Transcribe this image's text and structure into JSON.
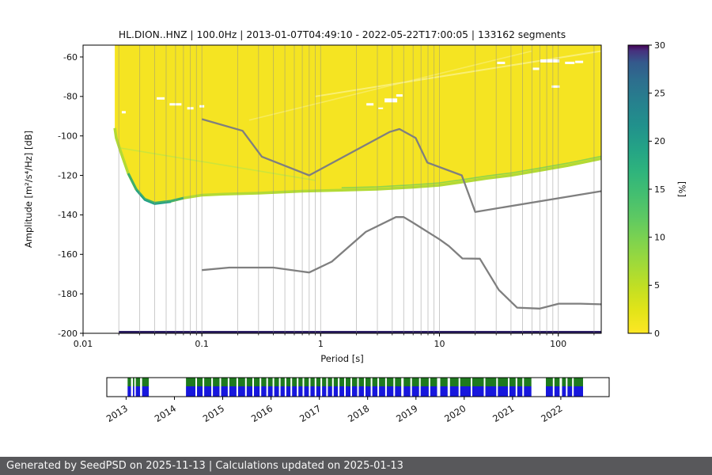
{
  "page": {
    "background": "#ffffff"
  },
  "footer": {
    "text": "Generated by SeedPSD on 2025-11-13 | Calculations updated on 2025-01-13"
  },
  "chart_data": [
    {
      "type": "heatmap",
      "title": "HL.DION..HNZ | 100.0Hz | 2013-01-07T04:49:10 - 2022-05-22T17:00:05 | 133162 segments",
      "xlabel": "Period [s]",
      "ylabel": "Amplitude [m²/s⁴/Hz] [dB]",
      "x_scale": "log",
      "xlim": [
        0.01,
        230
      ],
      "ylim": [
        -200,
        -54
      ],
      "x_ticks": [
        0.01,
        0.1,
        1,
        10,
        100
      ],
      "x_tick_labels": [
        "0.01",
        "0.1",
        "1",
        "10",
        "100"
      ],
      "y_ticks": [
        -60,
        -80,
        -100,
        -120,
        -140,
        -160,
        -180,
        -200
      ],
      "grid": "vertical-log-minor",
      "colorbar": {
        "label": "[%]",
        "min": 0,
        "max": 30,
        "ticks": [
          0,
          5,
          10,
          15,
          20,
          25,
          30
        ],
        "colormap": "viridis_r",
        "gradient": [
          [
            0.0,
            "#fde725"
          ],
          [
            0.08,
            "#e2e418"
          ],
          [
            0.16,
            "#c2df23"
          ],
          [
            0.24,
            "#a0da39"
          ],
          [
            0.32,
            "#7fd34e"
          ],
          [
            0.4,
            "#5ec962"
          ],
          [
            0.48,
            "#44bf70"
          ],
          [
            0.56,
            "#2fb47c"
          ],
          [
            0.64,
            "#24a386"
          ],
          [
            0.72,
            "#21918c"
          ],
          [
            0.8,
            "#26818e"
          ],
          [
            0.88,
            "#2d6e8e"
          ],
          [
            0.94,
            "#34598c"
          ],
          [
            0.98,
            "#46327e"
          ],
          [
            1.0,
            "#440154"
          ]
        ]
      },
      "ppsd": {
        "fill_color": "#f5e422",
        "lower_bound": [
          [
            0.0185,
            -96
          ],
          [
            0.019,
            -101
          ],
          [
            0.021,
            -109
          ],
          [
            0.024,
            -119
          ],
          [
            0.028,
            -127
          ],
          [
            0.033,
            -132
          ],
          [
            0.04,
            -134
          ],
          [
            0.055,
            -133
          ],
          [
            0.07,
            -131.5
          ],
          [
            0.1,
            -130
          ],
          [
            0.15,
            -129.5
          ],
          [
            0.3,
            -129
          ],
          [
            0.7,
            -128
          ],
          [
            1.5,
            -127.5
          ],
          [
            3,
            -127
          ],
          [
            6,
            -126
          ],
          [
            10,
            -125
          ],
          [
            15,
            -123.5
          ],
          [
            25,
            -121.5
          ],
          [
            40,
            -120
          ],
          [
            70,
            -117.5
          ],
          [
            120,
            -115
          ],
          [
            230,
            -111.5
          ]
        ],
        "edge": {
          "color": "#b3da35",
          "width": 3.5
        },
        "edge_extra": [
          {
            "color": "#3fae6e",
            "width": 3,
            "range": [
              0.023,
              0.095
            ],
            "dy": 0
          },
          {
            "color": "#1f9e89",
            "width": 1.6,
            "range": [
              0.028,
              0.06
            ],
            "dy": 1.5
          },
          {
            "color": "#8fd54a",
            "width": 1.6,
            "range": [
              1.5,
              230
            ],
            "dy": -3
          }
        ],
        "streaks": [
          {
            "from": [
              0.02,
              -106
            ],
            "to": [
              0.9,
              -122.5
            ],
            "color": "#c9e43d",
            "width": 1.6,
            "opacity": 0.9
          },
          {
            "from": [
              0.9,
              -80
            ],
            "to": [
              230,
              -57
            ],
            "color": "#faf283",
            "width": 2,
            "opacity": 0.85
          },
          {
            "from": [
              0.25,
              -92
            ],
            "to": [
              60,
              -57
            ],
            "color": "#f9f083",
            "width": 1.6,
            "opacity": 0.6
          }
        ],
        "white_patches": [
          [
            0.045,
            -81,
            10,
            3
          ],
          [
            0.06,
            -84,
            15,
            3
          ],
          [
            0.08,
            -86,
            8,
            3
          ],
          [
            0.1,
            -85,
            6,
            3
          ],
          [
            0.022,
            -88,
            5,
            3
          ],
          [
            2.6,
            -84,
            9,
            3
          ],
          [
            3.9,
            -82,
            16,
            5
          ],
          [
            4.6,
            -79.5,
            8,
            3
          ],
          [
            3.2,
            -86,
            6,
            2
          ],
          [
            33,
            -63,
            10,
            3
          ],
          [
            85,
            -62,
            24,
            4
          ],
          [
            125,
            -63,
            12,
            3
          ],
          [
            95,
            -75,
            10,
            3
          ],
          [
            65,
            -66,
            8,
            3
          ],
          [
            150,
            -62.5,
            10,
            3
          ]
        ],
        "bottom_line": {
          "y": -199.3,
          "x_start": 0.02,
          "color": "#2c1e63"
        }
      },
      "noise_models": {
        "color": "#7f7f7f",
        "high": [
          [
            0.1,
            -91.5
          ],
          [
            0.22,
            -97.4
          ],
          [
            0.32,
            -110.5
          ],
          [
            0.8,
            -120
          ],
          [
            3.8,
            -98
          ],
          [
            4.6,
            -96.5
          ],
          [
            6.3,
            -101
          ],
          [
            7.9,
            -113.5
          ],
          [
            15.4,
            -120
          ],
          [
            20,
            -138.5
          ],
          [
            230,
            -128
          ]
        ],
        "low": [
          [
            0.1,
            -168
          ],
          [
            0.17,
            -166.7
          ],
          [
            0.4,
            -166.7
          ],
          [
            0.8,
            -169.2
          ],
          [
            1.24,
            -163.7
          ],
          [
            2.4,
            -148.6
          ],
          [
            4.3,
            -141.1
          ],
          [
            5,
            -141.1
          ],
          [
            6,
            -144
          ],
          [
            10,
            -152.4
          ],
          [
            12,
            -155.8
          ],
          [
            15.6,
            -162.1
          ],
          [
            21.9,
            -162.2
          ],
          [
            31.6,
            -178
          ],
          [
            45,
            -187
          ],
          [
            70,
            -187.5
          ],
          [
            101,
            -185
          ],
          [
            154,
            -185
          ],
          [
            230,
            -185.3
          ]
        ]
      }
    },
    {
      "type": "availability-timeline",
      "range": [
        2012.6,
        2023.0
      ],
      "years": [
        "2013",
        "2014",
        "2015",
        "2016",
        "2017",
        "2018",
        "2019",
        "2020",
        "2021",
        "2022"
      ],
      "year_values": [
        2013,
        2014,
        2015,
        2016,
        2017,
        2018,
        2019,
        2020,
        2021,
        2022
      ],
      "colors": {
        "top": "#1e7a1e",
        "bottom": "#1717dd"
      },
      "runs": [
        [
          2013.03,
          2013.1
        ],
        [
          2013.14,
          2013.17
        ],
        [
          2013.2,
          2013.29
        ],
        [
          2013.33,
          2013.47
        ],
        [
          2014.24,
          2021.39
        ],
        [
          2021.69,
          2022.46
        ]
      ],
      "gaps": [
        [
          2014.45,
          2
        ],
        [
          2014.6,
          2
        ],
        [
          2014.78,
          2
        ],
        [
          2014.95,
          2
        ],
        [
          2015.12,
          2
        ],
        [
          2015.3,
          2
        ],
        [
          2015.48,
          2
        ],
        [
          2015.63,
          2
        ],
        [
          2015.78,
          2
        ],
        [
          2015.92,
          2
        ],
        [
          2016.05,
          2
        ],
        [
          2016.18,
          2
        ],
        [
          2016.3,
          2
        ],
        [
          2016.42,
          2
        ],
        [
          2016.55,
          2
        ],
        [
          2016.67,
          2
        ],
        [
          2016.8,
          2
        ],
        [
          2016.92,
          2
        ],
        [
          2017.04,
          2
        ],
        [
          2017.16,
          2
        ],
        [
          2017.28,
          2
        ],
        [
          2017.4,
          2
        ],
        [
          2017.53,
          2
        ],
        [
          2017.66,
          2
        ],
        [
          2017.8,
          2
        ],
        [
          2017.94,
          2
        ],
        [
          2018.08,
          2
        ],
        [
          2018.22,
          2
        ],
        [
          2018.38,
          2
        ],
        [
          2018.55,
          2
        ],
        [
          2018.72,
          3
        ],
        [
          2018.9,
          2
        ],
        [
          2019.08,
          2
        ],
        [
          2019.28,
          2
        ],
        [
          2019.47,
          4
        ],
        [
          2019.68,
          3
        ],
        [
          2019.9,
          2
        ],
        [
          2020.15,
          2
        ],
        [
          2020.42,
          2
        ],
        [
          2020.68,
          2
        ],
        [
          2020.92,
          2
        ],
        [
          2021.08,
          2
        ],
        [
          2021.22,
          2
        ],
        [
          2021.85,
          2
        ],
        [
          2022.0,
          3
        ],
        [
          2022.12,
          2
        ],
        [
          2022.25,
          2
        ]
      ]
    }
  ]
}
